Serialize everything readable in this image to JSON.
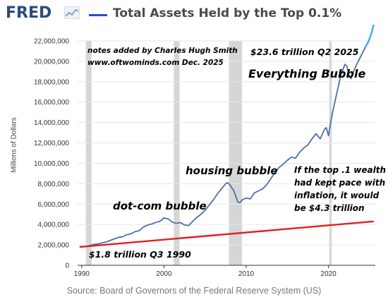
{
  "header": {
    "logo_text": "FRED",
    "logo_icon": "fred-chart-icon",
    "title": "Total Assets Held by the Top 0.1%"
  },
  "source": "Source: Board of Governors of the Federal Reserve System (US)",
  "annotations": {
    "notes_line1": "notes added by Charles Hugh Smith",
    "notes_line2": "www.oftwominds.com    Dec. 2025",
    "latest": "$23.6 trillion Q2 2025",
    "everything_bubble": "Everything Bubble",
    "housing_bubble": "housing bubble",
    "dotcom_bubble": "dot-com bubble",
    "start_value": "$1.8 trillion Q3 1990",
    "inflation_note": [
      "If the top  .1 wealth",
      "had kept pace with",
      "inflation, it would",
      "be  $4.3 trillion"
    ]
  },
  "colors": {
    "series": "#4b70a8",
    "inflation_line": "#e0201e",
    "recent_segment": "#3fa9e0",
    "recession": "#d6d6d6",
    "grid": "#e6e6e6",
    "legend": "#2d4bd6"
  },
  "chart_data": {
    "type": "line",
    "title": "Total Assets Held by the Top 0.1%",
    "ylabel": "Millions of Dollars",
    "xlabel": "",
    "xlim": [
      1989.5,
      2025.7
    ],
    "ylim": [
      0,
      22000000
    ],
    "x_ticks": [
      1990,
      2000,
      2010,
      2020
    ],
    "y_ticks": [
      0,
      2000000,
      4000000,
      6000000,
      8000000,
      10000000,
      12000000,
      14000000,
      16000000,
      18000000,
      20000000,
      22000000
    ],
    "y_tick_labels": [
      "0",
      "2,000,000",
      "4,000,000",
      "6,000,000",
      "8,000,000",
      "10,000,000",
      "12,000,000",
      "14,000,000",
      "16,000,000",
      "18,000,000",
      "20,000,000",
      "22,000,000"
    ],
    "grid": true,
    "recessions": [
      [
        1990.5,
        1991.2
      ],
      [
        2001.2,
        2001.9
      ],
      [
        2007.9,
        2009.5
      ],
      [
        2020.1,
        2020.4
      ]
    ],
    "series": [
      {
        "name": "Total Assets Held by the Top 0.1%",
        "points": [
          [
            1989.75,
            1800000
          ],
          [
            1990.5,
            1850000
          ],
          [
            1991.0,
            1950000
          ],
          [
            1991.5,
            2050000
          ],
          [
            1992.0,
            2100000
          ],
          [
            1992.5,
            2200000
          ],
          [
            1993.0,
            2300000
          ],
          [
            1993.5,
            2450000
          ],
          [
            1994.0,
            2600000
          ],
          [
            1994.5,
            2750000
          ],
          [
            1995.0,
            2800000
          ],
          [
            1995.5,
            3000000
          ],
          [
            1996.0,
            3100000
          ],
          [
            1996.5,
            3300000
          ],
          [
            1997.0,
            3400000
          ],
          [
            1997.5,
            3750000
          ],
          [
            1998.0,
            3950000
          ],
          [
            1998.5,
            4050000
          ],
          [
            1999.0,
            4200000
          ],
          [
            1999.5,
            4300000
          ],
          [
            2000.0,
            4650000
          ],
          [
            2000.5,
            4550000
          ],
          [
            2001.0,
            4250000
          ],
          [
            2001.5,
            4100000
          ],
          [
            2002.0,
            4200000
          ],
          [
            2002.5,
            3950000
          ],
          [
            2003.0,
            3900000
          ],
          [
            2003.5,
            4300000
          ],
          [
            2004.0,
            4700000
          ],
          [
            2004.5,
            5000000
          ],
          [
            2005.0,
            5400000
          ],
          [
            2005.5,
            5900000
          ],
          [
            2006.0,
            6400000
          ],
          [
            2006.5,
            7000000
          ],
          [
            2007.0,
            7500000
          ],
          [
            2007.5,
            8000000
          ],
          [
            2007.75,
            8100000
          ],
          [
            2008.0,
            7900000
          ],
          [
            2008.5,
            7300000
          ],
          [
            2009.0,
            6200000
          ],
          [
            2009.25,
            6150000
          ],
          [
            2009.5,
            6400000
          ],
          [
            2010.0,
            6600000
          ],
          [
            2010.5,
            6500000
          ],
          [
            2011.0,
            7100000
          ],
          [
            2011.5,
            7300000
          ],
          [
            2012.0,
            7500000
          ],
          [
            2012.5,
            7900000
          ],
          [
            2013.0,
            8500000
          ],
          [
            2013.5,
            9100000
          ],
          [
            2014.0,
            9600000
          ],
          [
            2014.5,
            9900000
          ],
          [
            2015.0,
            10300000
          ],
          [
            2015.5,
            10600000
          ],
          [
            2016.0,
            10500000
          ],
          [
            2016.5,
            11100000
          ],
          [
            2017.0,
            11500000
          ],
          [
            2017.5,
            11800000
          ],
          [
            2018.0,
            12400000
          ],
          [
            2018.5,
            12900000
          ],
          [
            2019.0,
            12400000
          ],
          [
            2019.5,
            13300000
          ],
          [
            2019.75,
            13500000
          ],
          [
            2020.0,
            12700000
          ],
          [
            2020.25,
            13900000
          ],
          [
            2020.5,
            15000000
          ],
          [
            2021.0,
            16800000
          ],
          [
            2021.5,
            18600000
          ],
          [
            2022.0,
            19700000
          ],
          [
            2022.25,
            19500000
          ],
          [
            2022.5,
            18600000
          ],
          [
            2022.75,
            18300000
          ],
          [
            2023.0,
            18900000
          ],
          [
            2023.5,
            19800000
          ],
          [
            2024.0,
            20600000
          ],
          [
            2024.5,
            21400000
          ]
        ]
      },
      {
        "name": "",
        "points": [
          [
            2024.5,
            21400000
          ],
          [
            2024.9,
            22000000
          ],
          [
            2025.25,
            22800000
          ],
          [
            2025.5,
            23600000
          ]
        ]
      },
      {
        "name": "",
        "points": [
          [
            1989.75,
            1800000
          ],
          [
            2025.5,
            4300000
          ]
        ]
      }
    ]
  }
}
